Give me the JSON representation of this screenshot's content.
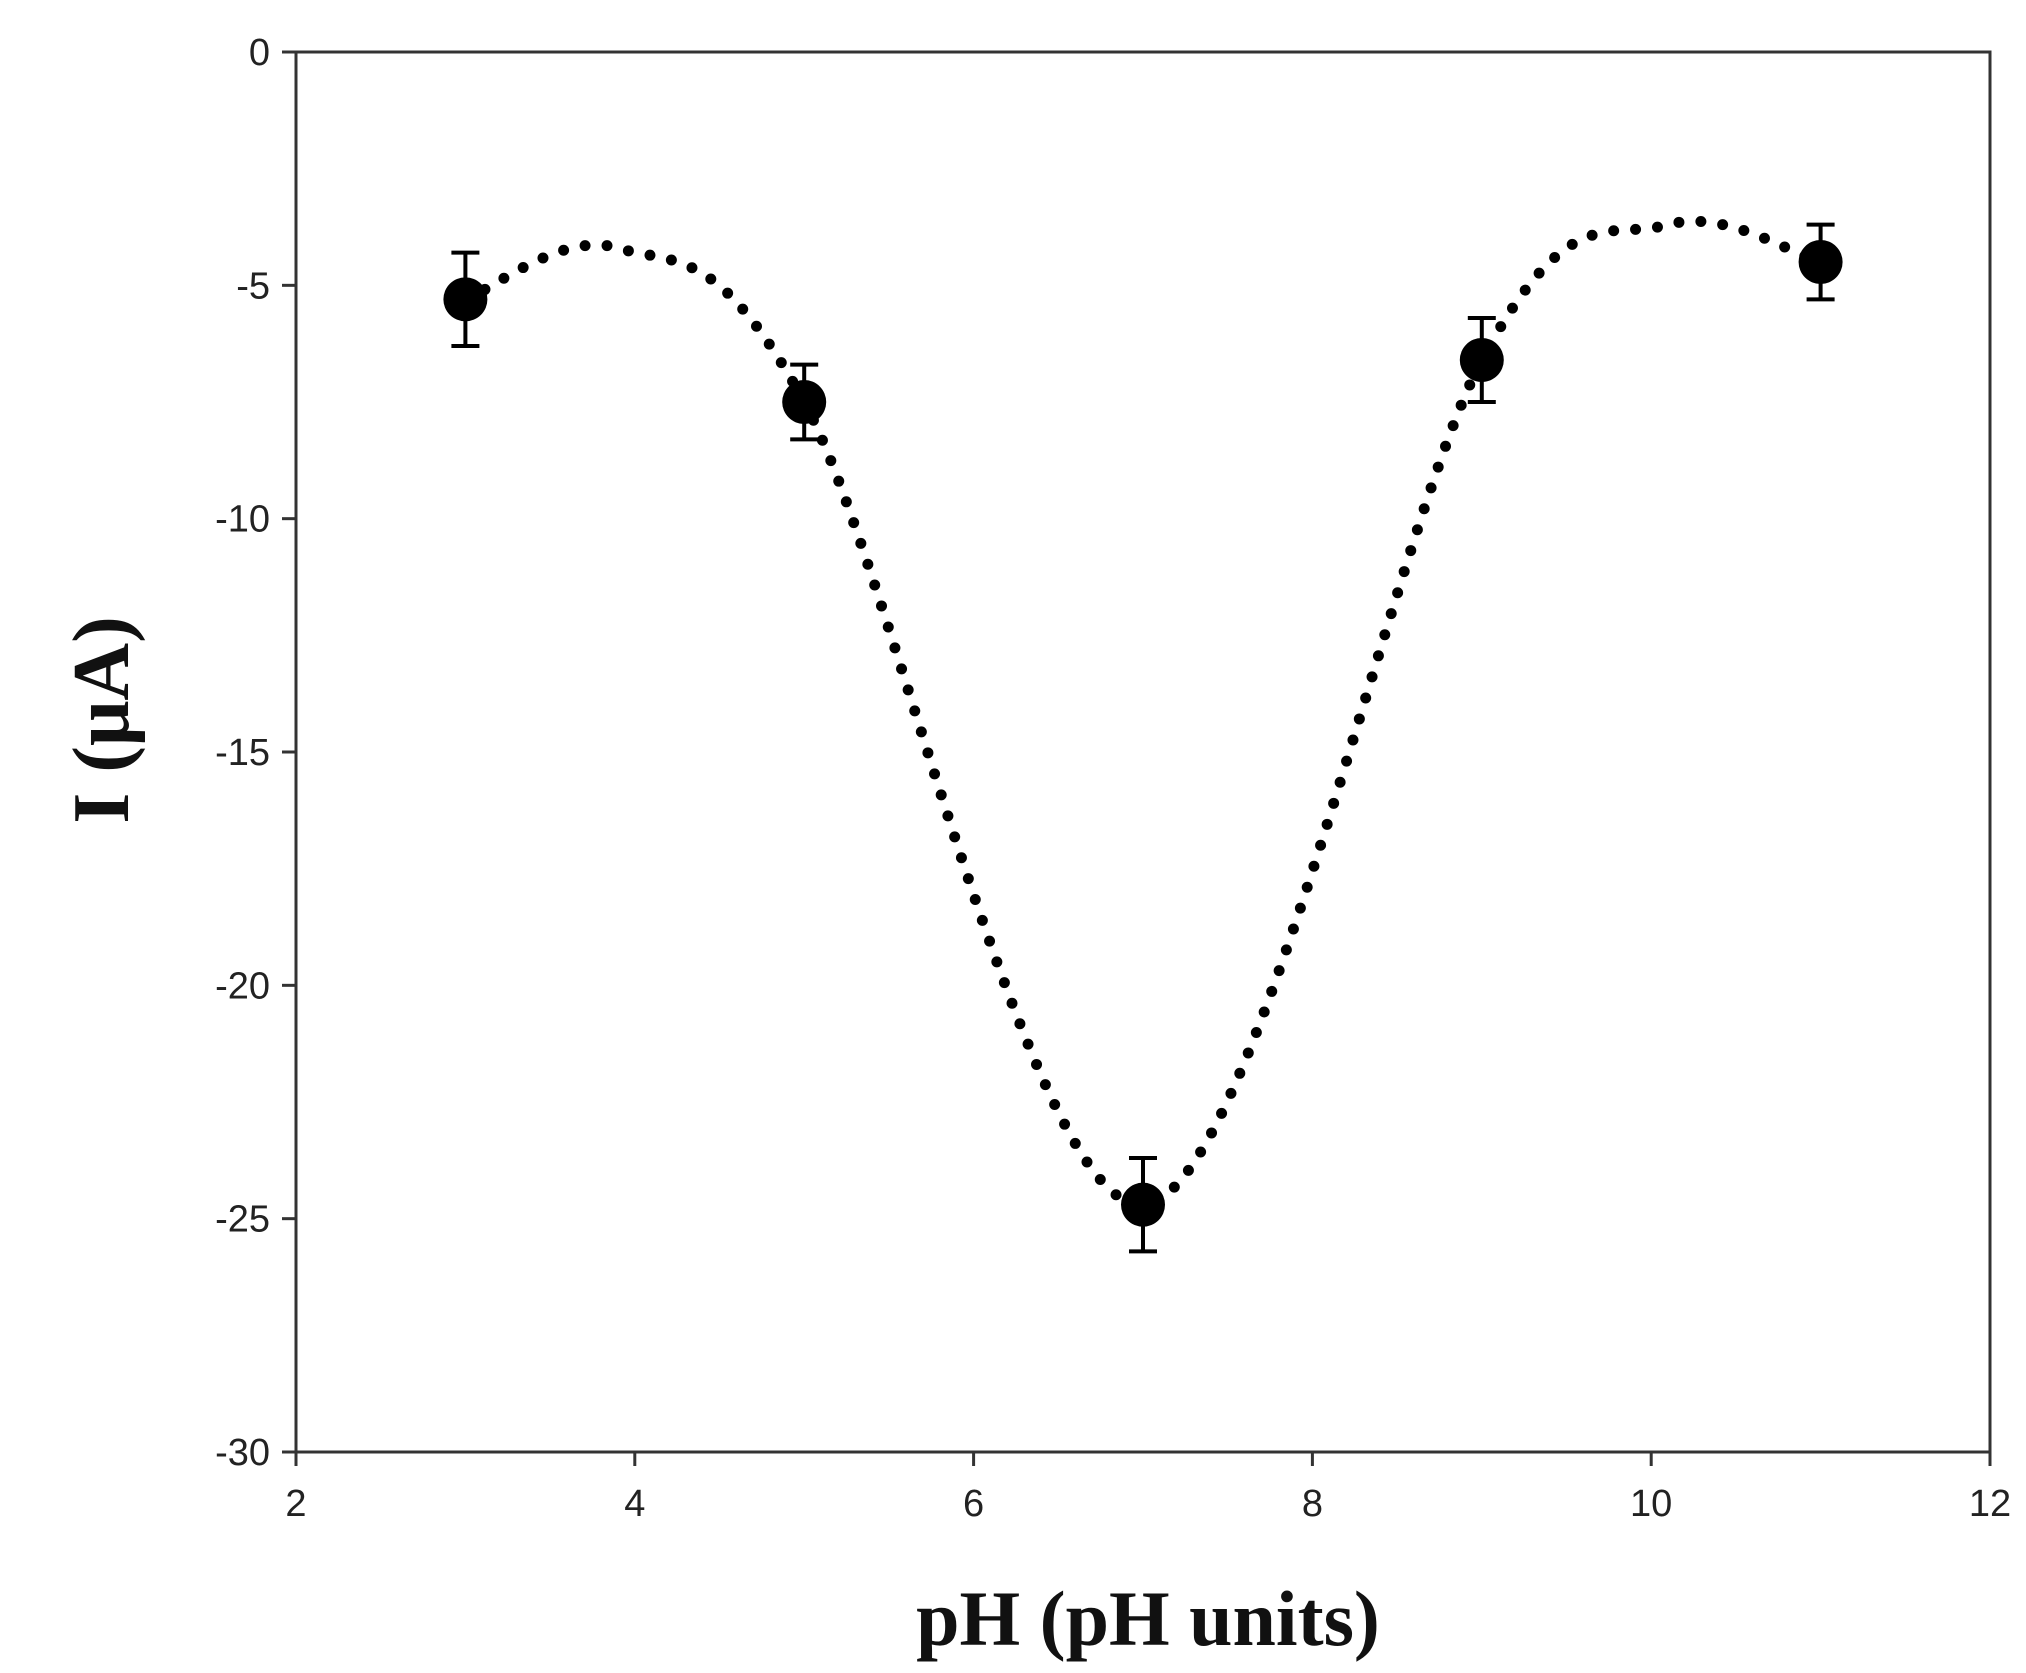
{
  "chart_data": {
    "type": "scatter",
    "title": "",
    "xlabel": "pH (pH units)",
    "ylabel": "I (μA)",
    "xlim": [
      2,
      12
    ],
    "ylim": [
      -30,
      0
    ],
    "xticks": [
      2,
      4,
      6,
      8,
      10,
      12
    ],
    "yticks": [
      0,
      -5,
      -10,
      -15,
      -20,
      -25,
      -30
    ],
    "grid": false,
    "legend": "none",
    "series": [
      {
        "points": [
          {
            "x": 3,
            "y": -5.3,
            "err": 1.0
          },
          {
            "x": 5,
            "y": -7.5,
            "err": 0.8
          },
          {
            "x": 7,
            "y": -24.7,
            "err": 1.0
          },
          {
            "x": 9,
            "y": -6.6,
            "err": 0.9
          },
          {
            "x": 11,
            "y": -4.5,
            "err": 0.8
          }
        ],
        "marker": "filled-circle",
        "color": "#000000"
      }
    ],
    "fit_curve": {
      "style": "dotted",
      "color": "#000000",
      "points": [
        {
          "x": 3,
          "y": -5.3
        },
        {
          "x": 3.9,
          "y": -4.2
        },
        {
          "x": 5,
          "y": -7.5
        },
        {
          "x": 7,
          "y": -24.7
        },
        {
          "x": 9,
          "y": -6.6
        },
        {
          "x": 10.1,
          "y": -3.7
        },
        {
          "x": 11,
          "y": -4.5
        }
      ]
    }
  }
}
